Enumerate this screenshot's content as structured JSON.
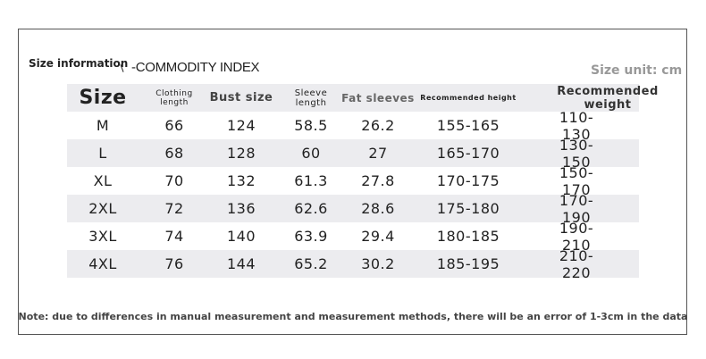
{
  "header": {
    "title": "Size information",
    "subtitle": "-COMMODITY INDEX",
    "unit": "Size unit: cm"
  },
  "table": {
    "columns": [
      "Size",
      "Clothing length",
      "Bust size",
      "Sleeve length",
      "Fat sleeves",
      "Recommended height",
      "Recommended weight"
    ],
    "rows": [
      [
        "M",
        "66",
        "124",
        "58.5",
        "26.2",
        "155-165",
        "110-130"
      ],
      [
        "L",
        "68",
        "128",
        "60",
        "27",
        "165-170",
        "130-150"
      ],
      [
        "XL",
        "70",
        "132",
        "61.3",
        "27.8",
        "170-175",
        "150-170"
      ],
      [
        "2XL",
        "72",
        "136",
        "62.6",
        "28.6",
        "175-180",
        "170-190"
      ],
      [
        "3XL",
        "74",
        "140",
        "63.9",
        "29.4",
        "180-185",
        "190-210"
      ],
      [
        "4XL",
        "76",
        "144",
        "65.2",
        "30.2",
        "185-195",
        "210-220"
      ]
    ]
  },
  "note": "Note: due to differences in manual measurement and measurement methods, there will be an error of 1-3cm in the data"
}
